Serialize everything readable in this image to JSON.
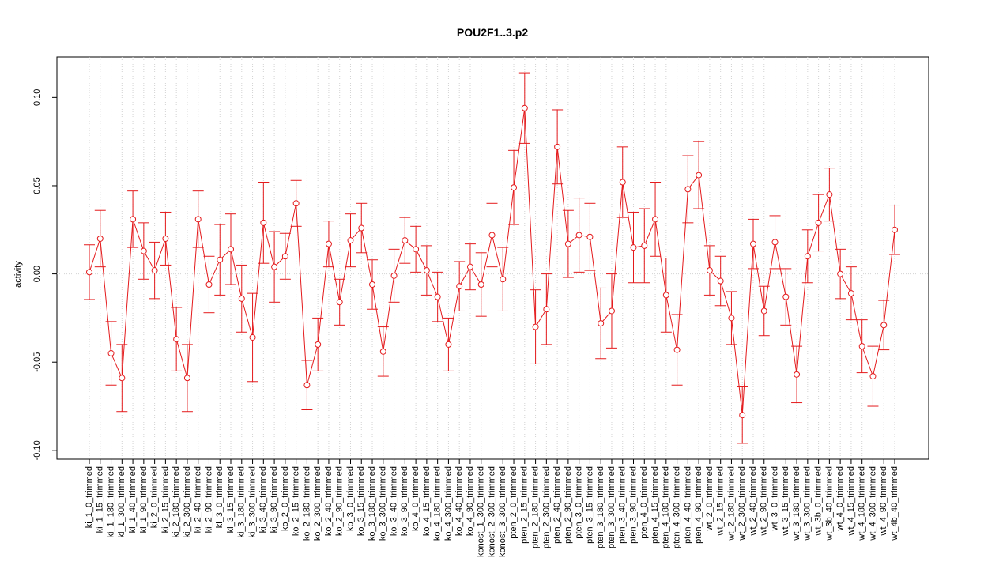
{
  "chart_data": {
    "type": "errorbar_line",
    "title": "POU2F1..3.p2",
    "y_label": "activity",
    "categories": [
      "ki_1_0_trimmed",
      "ki_1_15_trimmed",
      "ki_1_180_trimmed",
      "ki_1_300_trimmed",
      "ki_1_40_trimmed",
      "ki_1_90_trimmed",
      "ki_2_0_trimmed",
      "ki_2_15_trimmed",
      "ki_2_180_trimmed",
      "ki_2_300_trimmed",
      "ki_2_40_trimmed",
      "ki_2_90_trimmed",
      "ki_3_0_trimmed",
      "ki_3_15_trimmed",
      "ki_3_180_trimmed",
      "ki_3_300_trimmed",
      "ki_3_40_trimmed",
      "ki_3_90_trimmed",
      "ko_2_0_trimmed",
      "ko_2_15_trimmed",
      "ko_2_180_trimmed",
      "ko_2_300_trimmed",
      "ko_2_40_trimmed",
      "ko_2_90_trimmed",
      "ko_3_0_trimmed",
      "ko_3_15_trimmed",
      "ko_3_180_trimmed",
      "ko_3_300_trimmed",
      "ko_3_40_trimmed",
      "ko_3_90_trimmed",
      "ko_4_0_trimmed",
      "ko_4_15_trimmed",
      "ko_4_180_trimmed",
      "ko_4_300_trimmed",
      "ko_4_40_trimmed",
      "ko_4_90_trimmed",
      "konost_1_300_trimmed",
      "konost_2_300_trimmed",
      "konost_3_300_trimmed",
      "pten_2_0_trimmed",
      "pten_2_15_trimmed",
      "pten_2_180_trimmed",
      "pten_2_300_trimmed",
      "pten_2_40_trimmed",
      "pten_2_90_trimmed",
      "pten_3_0_trimmed",
      "pten_3_15_trimmed",
      "pten_3_180_trimmed",
      "pten_3_300_trimmed",
      "pten_3_40_trimmed",
      "pten_3_90_trimmed",
      "pten_4_0_trimmed",
      "pten_4_15_trimmed",
      "pten_4_180_trimmed",
      "pten_4_300_trimmed",
      "pten_4_40_trimmed",
      "pten_4_90_trimmed",
      "wt_2_0_trimmed",
      "wt_2_15_trimmed",
      "wt_2_180_trimmed",
      "wt_2_300_trimmed",
      "wt_2_40_trimmed",
      "wt_2_90_trimmed",
      "wt_3_0_trimmed",
      "wt_3_15_trimmed",
      "wt_3_180_trimmed",
      "wt_3_300_trimmed",
      "wt_3b_0_trimmed",
      "wt_3b_40_trimmed",
      "wt_4_0_trimmed",
      "wt_4_15_trimmed",
      "wt_4_180_trimmed",
      "wt_4_300_trimmed",
      "wt_4_90_trimmed",
      "wt_4b_40_trimmed"
    ],
    "values": [
      0.001,
      0.02,
      -0.045,
      -0.059,
      0.031,
      0.013,
      0.002,
      0.02,
      -0.037,
      -0.059,
      0.031,
      -0.006,
      0.008,
      0.014,
      -0.014,
      -0.036,
      0.029,
      0.004,
      0.01,
      0.04,
      -0.063,
      -0.04,
      0.017,
      -0.016,
      0.019,
      0.026,
      -0.006,
      -0.044,
      -0.001,
      0.019,
      0.014,
      0.002,
      -0.013,
      -0.04,
      -0.007,
      0.004,
      -0.006,
      0.022,
      -0.003,
      0.049,
      0.094,
      -0.03,
      -0.02,
      0.072,
      0.017,
      0.022,
      0.021,
      -0.028,
      -0.021,
      0.052,
      0.015,
      0.016,
      0.031,
      -0.012,
      -0.043,
      0.048,
      0.056,
      0.002,
      -0.004,
      -0.025,
      -0.08,
      0.017,
      -0.021,
      0.018,
      -0.013,
      -0.057,
      0.01,
      0.029,
      0.045,
      0.0,
      -0.011,
      -0.041,
      -0.058,
      -0.029,
      0.025
    ],
    "errors": [
      0.0155,
      0.016,
      0.018,
      0.019,
      0.016,
      0.016,
      0.016,
      0.015,
      0.018,
      0.019,
      0.016,
      0.016,
      0.02,
      0.02,
      0.019,
      0.025,
      0.023,
      0.02,
      0.013,
      0.013,
      0.014,
      0.015,
      0.013,
      0.013,
      0.015,
      0.014,
      0.014,
      0.014,
      0.015,
      0.013,
      0.013,
      0.014,
      0.014,
      0.015,
      0.014,
      0.013,
      0.018,
      0.018,
      0.018,
      0.021,
      0.02,
      0.021,
      0.02,
      0.021,
      0.019,
      0.021,
      0.019,
      0.02,
      0.021,
      0.02,
      0.02,
      0.021,
      0.021,
      0.021,
      0.02,
      0.019,
      0.019,
      0.014,
      0.014,
      0.015,
      0.016,
      0.014,
      0.014,
      0.015,
      0.016,
      0.016,
      0.015,
      0.016,
      0.015,
      0.014,
      0.015,
      0.015,
      0.017,
      0.014,
      0.014
    ],
    "color": "#e41a1c",
    "ylim": [
      -0.105,
      0.123
    ],
    "yticks": [
      {
        "value": -0.1,
        "label": "-0.10"
      },
      {
        "value": -0.05,
        "label": "-0.05"
      },
      {
        "value": 0,
        "label": "0.00"
      },
      {
        "value": 0.05,
        "label": "0.05"
      },
      {
        "value": 0.1,
        "label": "0.10"
      }
    ],
    "reference_line": 0,
    "grid": true
  }
}
